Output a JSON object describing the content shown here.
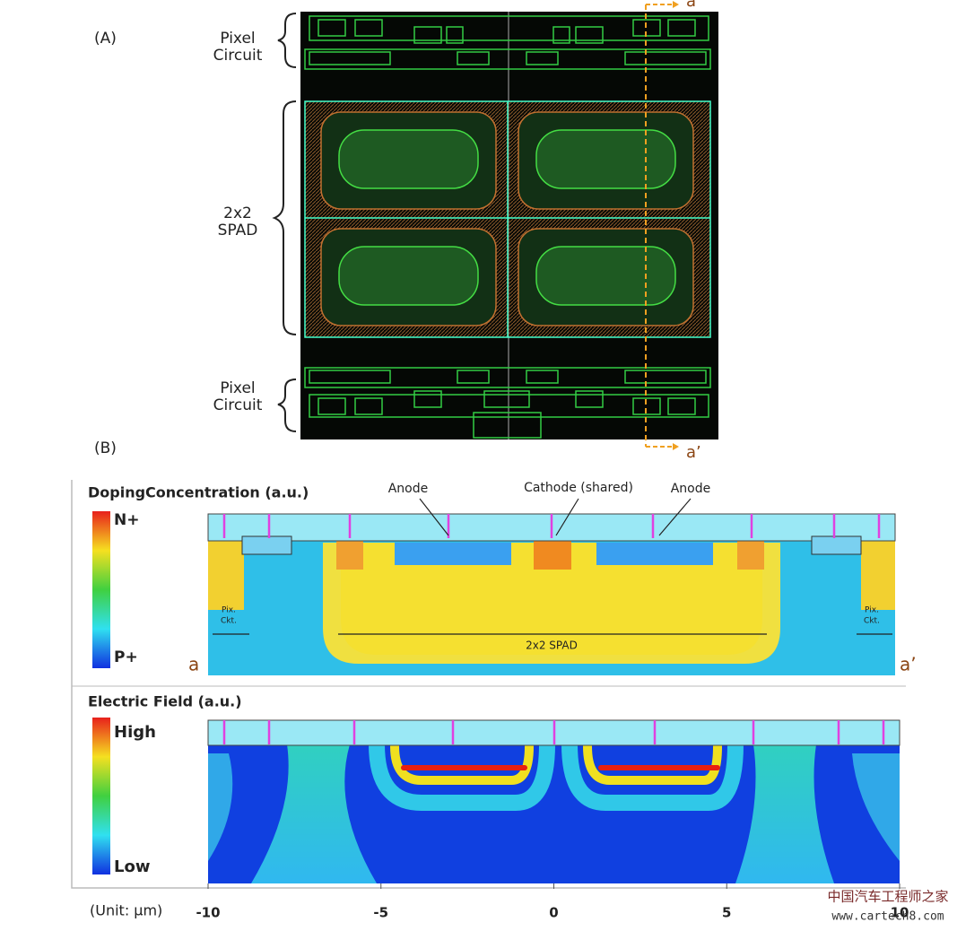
{
  "panel_a": {
    "label": "(A)",
    "pixel_circuit_top": [
      "Pixel",
      "Circuit"
    ],
    "spad": [
      "2x2",
      "SPAD"
    ],
    "pixel_circuit_bottom": [
      "Pixel",
      "Circuit"
    ],
    "cut_start": "a",
    "cut_end": "a’"
  },
  "panel_b": {
    "label": "(B)",
    "doping": {
      "title": "DopingConcentration (a.u.)",
      "scale_high": "N+",
      "scale_low": "P+",
      "annotations": [
        "Anode",
        "Cathode (shared)",
        "Anode"
      ],
      "pix_ckt_left": [
        "Pix.",
        "Ckt."
      ],
      "pix_ckt_right": [
        "Pix.",
        "Ckt."
      ],
      "spad_span": "2x2 SPAD",
      "end_left": "a",
      "end_right": "a’"
    },
    "field": {
      "title": "Electric Field (a.u.)",
      "scale_high": "High",
      "scale_low": "Low"
    },
    "axis": {
      "label": "(Unit: µm)",
      "lim": [
        -10,
        10
      ],
      "ticks": [
        -10,
        -5,
        0,
        5,
        10
      ]
    }
  },
  "watermark": {
    "line1": "中国汽车工程师之家",
    "line2": "www.cartech8.com"
  }
}
